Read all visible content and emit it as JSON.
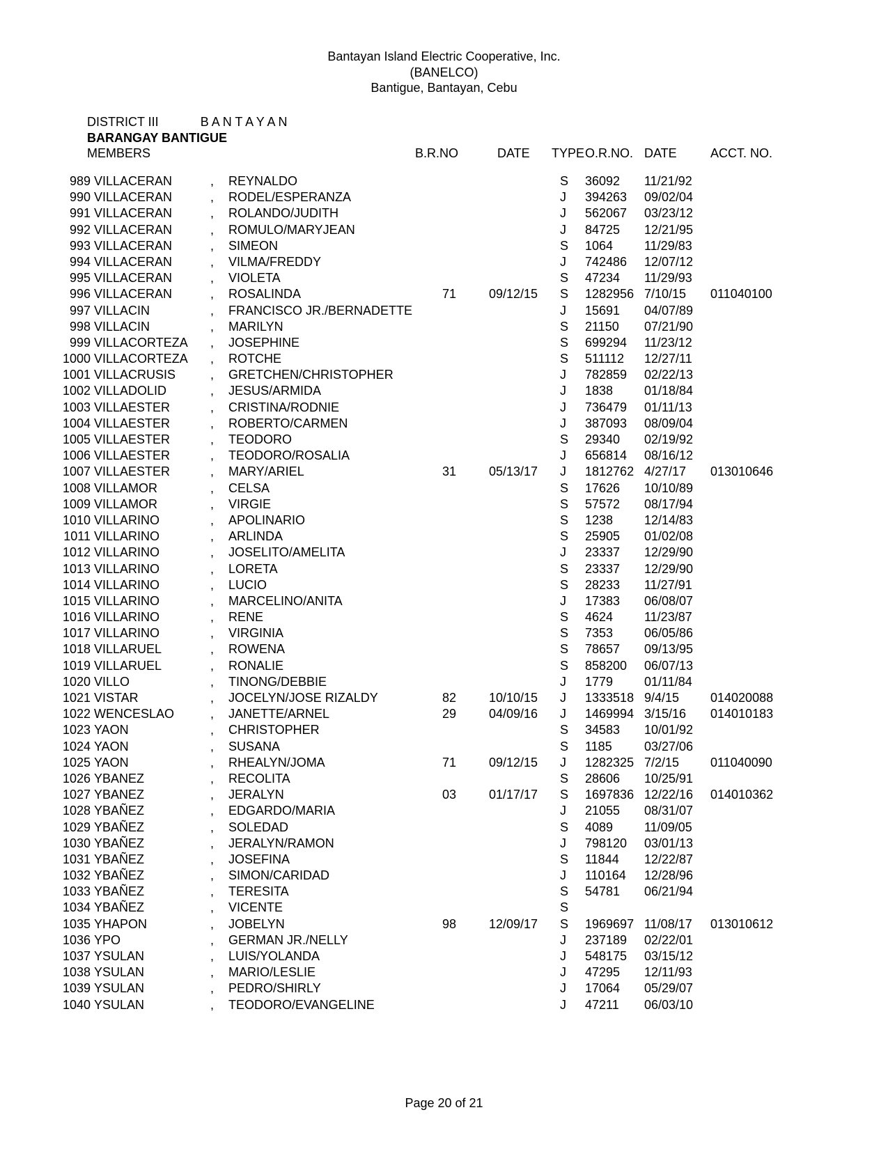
{
  "header": {
    "line1": "Bantayan Island Electric Cooperative, Inc.",
    "line2": "(BANELCO)",
    "line3": "Bantigue, Bantayan, Cebu"
  },
  "district_label": "DISTRICT III",
  "district_name": "B A N T A Y A N",
  "barangay_line": "BARANGAY  BANTIGUE",
  "members_label": "MEMBERS",
  "columns": {
    "brno": "B.R.NO",
    "date": "DATE",
    "type": "TYPE",
    "orno": "O.R.NO.",
    "date2": "DATE",
    "acct": "ACCT. NO."
  },
  "rows": [
    {
      "n": "989",
      "last": "VILLACERAN",
      "first": "REYNALDO",
      "brno": "",
      "d1": "",
      "t": "S",
      "or": "36092",
      "d2": "11/21/92",
      "acct": ""
    },
    {
      "n": "990",
      "last": "VILLACERAN",
      "first": "RODEL/ESPERANZA",
      "brno": "",
      "d1": "",
      "t": "J",
      "or": "394263",
      "d2": "09/02/04",
      "acct": ""
    },
    {
      "n": "991",
      "last": "VILLACERAN",
      "first": "ROLANDO/JUDITH",
      "brno": "",
      "d1": "",
      "t": "J",
      "or": "562067",
      "d2": "03/23/12",
      "acct": ""
    },
    {
      "n": "992",
      "last": "VILLACERAN",
      "first": "ROMULO/MARYJEAN",
      "brno": "",
      "d1": "",
      "t": "J",
      "or": "84725",
      "d2": "12/21/95",
      "acct": ""
    },
    {
      "n": "993",
      "last": "VILLACERAN",
      "first": "SIMEON",
      "brno": "",
      "d1": "",
      "t": "S",
      "or": "1064",
      "d2": "11/29/83",
      "acct": ""
    },
    {
      "n": "994",
      "last": "VILLACERAN",
      "first": "VILMA/FREDDY",
      "brno": "",
      "d1": "",
      "t": "J",
      "or": "742486",
      "d2": "12/07/12",
      "acct": ""
    },
    {
      "n": "995",
      "last": "VILLACERAN",
      "first": "VIOLETA",
      "brno": "",
      "d1": "",
      "t": "S",
      "or": "47234",
      "d2": "11/29/93",
      "acct": ""
    },
    {
      "n": "996",
      "last": "VILLACERAN",
      "first": "ROSALINDA",
      "brno": "71",
      "d1": "09/12/15",
      "t": "S",
      "or": "1282956",
      "d2": "7/10/15",
      "acct": "011040100"
    },
    {
      "n": "997",
      "last": "VILLACIN",
      "first": "FRANCISCO JR./BERNADETTE",
      "brno": "",
      "d1": "",
      "t": "J",
      "or": "15691",
      "d2": "04/07/89",
      "acct": ""
    },
    {
      "n": "998",
      "last": "VILLACIN",
      "first": "MARILYN",
      "brno": "",
      "d1": "",
      "t": "S",
      "or": "21150",
      "d2": "07/21/90",
      "acct": ""
    },
    {
      "n": "999",
      "last": "VILLACORTEZA",
      "first": "JOSEPHINE",
      "brno": "",
      "d1": "",
      "t": "S",
      "or": "699294",
      "d2": "11/23/12",
      "acct": ""
    },
    {
      "n": "1000",
      "last": "VILLACORTEZA",
      "first": "ROTCHE",
      "brno": "",
      "d1": "",
      "t": "S",
      "or": "511112",
      "d2": "12/27/11",
      "acct": ""
    },
    {
      "n": "1001",
      "last": "VILLACRUSIS",
      "first": "GRETCHEN/CHRISTOPHER",
      "brno": "",
      "d1": "",
      "t": "J",
      "or": "782859",
      "d2": "02/22/13",
      "acct": ""
    },
    {
      "n": "1002",
      "last": "VILLADOLID",
      "first": "JESUS/ARMIDA",
      "brno": "",
      "d1": "",
      "t": "J",
      "or": "1838",
      "d2": "01/18/84",
      "acct": ""
    },
    {
      "n": "1003",
      "last": "VILLAESTER",
      "first": "CRISTINA/RODNIE",
      "brno": "",
      "d1": "",
      "t": "J",
      "or": "736479",
      "d2": "01/11/13",
      "acct": ""
    },
    {
      "n": "1004",
      "last": "VILLAESTER",
      "first": "ROBERTO/CARMEN",
      "brno": "",
      "d1": "",
      "t": "J",
      "or": "387093",
      "d2": "08/09/04",
      "acct": ""
    },
    {
      "n": "1005",
      "last": "VILLAESTER",
      "first": "TEODORO",
      "brno": "",
      "d1": "",
      "t": "S",
      "or": "29340",
      "d2": "02/19/92",
      "acct": ""
    },
    {
      "n": "1006",
      "last": "VILLAESTER",
      "first": "TEODORO/ROSALIA",
      "brno": "",
      "d1": "",
      "t": "J",
      "or": "656814",
      "d2": "08/16/12",
      "acct": ""
    },
    {
      "n": "1007",
      "last": "VILLAESTER",
      "first": "MARY/ARIEL",
      "brno": "31",
      "d1": "05/13/17",
      "t": "J",
      "or": "1812762",
      "d2": "4/27/17",
      "acct": "013010646"
    },
    {
      "n": "1008",
      "last": "VILLAMOR",
      "first": "CELSA",
      "brno": "",
      "d1": "",
      "t": "S",
      "or": "17626",
      "d2": "10/10/89",
      "acct": ""
    },
    {
      "n": "1009",
      "last": "VILLAMOR",
      "first": "VIRGIE",
      "brno": "",
      "d1": "",
      "t": "S",
      "or": "57572",
      "d2": "08/17/94",
      "acct": ""
    },
    {
      "n": "1010",
      "last": "VILLARINO",
      "first": "APOLINARIO",
      "brno": "",
      "d1": "",
      "t": "S",
      "or": "1238",
      "d2": "12/14/83",
      "acct": ""
    },
    {
      "n": "1011",
      "last": "VILLARINO",
      "first": "ARLINDA",
      "brno": "",
      "d1": "",
      "t": "S",
      "or": "25905",
      "d2": "01/02/08",
      "acct": ""
    },
    {
      "n": "1012",
      "last": "VILLARINO",
      "first": "JOSELITO/AMELITA",
      "brno": "",
      "d1": "",
      "t": "J",
      "or": "23337",
      "d2": "12/29/90",
      "acct": ""
    },
    {
      "n": "1013",
      "last": "VILLARINO",
      "first": "LORETA",
      "brno": "",
      "d1": "",
      "t": "S",
      "or": "23337",
      "d2": "12/29/90",
      "acct": ""
    },
    {
      "n": "1014",
      "last": "VILLARINO",
      "first": "LUCIO",
      "brno": "",
      "d1": "",
      "t": "S",
      "or": "28233",
      "d2": "11/27/91",
      "acct": ""
    },
    {
      "n": "1015",
      "last": "VILLARINO",
      "first": "MARCELINO/ANITA",
      "brno": "",
      "d1": "",
      "t": "J",
      "or": "17383",
      "d2": "06/08/07",
      "acct": ""
    },
    {
      "n": "1016",
      "last": "VILLARINO",
      "first": "RENE",
      "brno": "",
      "d1": "",
      "t": "S",
      "or": "4624",
      "d2": "11/23/87",
      "acct": ""
    },
    {
      "n": "1017",
      "last": "VILLARINO",
      "first": "VIRGINIA",
      "brno": "",
      "d1": "",
      "t": "S",
      "or": "7353",
      "d2": "06/05/86",
      "acct": ""
    },
    {
      "n": "1018",
      "last": "VILLARUEL",
      "first": "ROWENA",
      "brno": "",
      "d1": "",
      "t": "S",
      "or": "78657",
      "d2": "09/13/95",
      "acct": ""
    },
    {
      "n": "1019",
      "last": "VILLARUEL",
      "first": "RONALIE",
      "brno": "",
      "d1": "",
      "t": "S",
      "or": "858200",
      "d2": "06/07/13",
      "acct": ""
    },
    {
      "n": "1020",
      "last": "VILLO",
      "first": "TINONG/DEBBIE",
      "brno": "",
      "d1": "",
      "t": "J",
      "or": "1779",
      "d2": "01/11/84",
      "acct": ""
    },
    {
      "n": "1021",
      "last": "VISTAR",
      "first": "JOCELYN/JOSE RIZALDY",
      "brno": "82",
      "d1": "10/10/15",
      "t": "J",
      "or": "1333518",
      "d2": "9/4/15",
      "acct": "014020088"
    },
    {
      "n": "1022",
      "last": "WENCESLAO",
      "first": "JANETTE/ARNEL",
      "brno": "29",
      "d1": "04/09/16",
      "t": "J",
      "or": "1469994",
      "d2": "3/15/16",
      "acct": "014010183"
    },
    {
      "n": "1023",
      "last": "YAON",
      "first": "CHRISTOPHER",
      "brno": "",
      "d1": "",
      "t": "S",
      "or": "34583",
      "d2": "10/01/92",
      "acct": ""
    },
    {
      "n": "1024",
      "last": "YAON",
      "first": "SUSANA",
      "brno": "",
      "d1": "",
      "t": "S",
      "or": "1185",
      "d2": "03/27/06",
      "acct": ""
    },
    {
      "n": "1025",
      "last": "YAON",
      "first": "RHEALYN/JOMA",
      "brno": "71",
      "d1": "09/12/15",
      "t": "J",
      "or": "1282325",
      "d2": "7/2/15",
      "acct": "011040090"
    },
    {
      "n": "1026",
      "last": "YBANEZ",
      "first": "RECOLITA",
      "brno": "",
      "d1": "",
      "t": "S",
      "or": "28606",
      "d2": "10/25/91",
      "acct": ""
    },
    {
      "n": "1027",
      "last": "YBANEZ",
      "first": "JERALYN",
      "brno": "03",
      "d1": "01/17/17",
      "t": "S",
      "or": "1697836",
      "d2": "12/22/16",
      "acct": "014010362"
    },
    {
      "n": "1028",
      "last": "YBAÑEZ",
      "first": "EDGARDO/MARIA",
      "brno": "",
      "d1": "",
      "t": "J",
      "or": "21055",
      "d2": "08/31/07",
      "acct": ""
    },
    {
      "n": "1029",
      "last": "YBAÑEZ",
      "first": "SOLEDAD",
      "brno": "",
      "d1": "",
      "t": "S",
      "or": "4089",
      "d2": "11/09/05",
      "acct": ""
    },
    {
      "n": "1030",
      "last": "YBAÑEZ",
      "first": "JERALYN/RAMON",
      "brno": "",
      "d1": "",
      "t": "J",
      "or": "798120",
      "d2": "03/01/13",
      "acct": ""
    },
    {
      "n": "1031",
      "last": "YBAÑEZ",
      "first": "JOSEFINA",
      "brno": "",
      "d1": "",
      "t": "S",
      "or": "11844",
      "d2": "12/22/87",
      "acct": ""
    },
    {
      "n": "1032",
      "last": "YBAÑEZ",
      "first": "SIMON/CARIDAD",
      "brno": "",
      "d1": "",
      "t": "J",
      "or": "110164",
      "d2": "12/28/96",
      "acct": ""
    },
    {
      "n": "1033",
      "last": "YBAÑEZ",
      "first": "TERESITA",
      "brno": "",
      "d1": "",
      "t": "S",
      "or": "54781",
      "d2": "06/21/94",
      "acct": ""
    },
    {
      "n": "1034",
      "last": "YBAÑEZ",
      "first": "VICENTE",
      "brno": "",
      "d1": "",
      "t": "S",
      "or": "",
      "d2": "",
      "acct": ""
    },
    {
      "n": "1035",
      "last": "YHAPON",
      "first": "JOBELYN",
      "brno": "98",
      "d1": "12/09/17",
      "t": "S",
      "or": "1969697",
      "d2": "11/08/17",
      "acct": "013010612"
    },
    {
      "n": "1036",
      "last": "YPO",
      "first": "GERMAN JR./NELLY",
      "brno": "",
      "d1": "",
      "t": "J",
      "or": "237189",
      "d2": "02/22/01",
      "acct": ""
    },
    {
      "n": "1037",
      "last": "YSULAN",
      "first": "LUIS/YOLANDA",
      "brno": "",
      "d1": "",
      "t": "J",
      "or": "548175",
      "d2": "03/15/12",
      "acct": ""
    },
    {
      "n": "1038",
      "last": "YSULAN",
      "first": "MARIO/LESLIE",
      "brno": "",
      "d1": "",
      "t": "J",
      "or": "47295",
      "d2": "12/11/93",
      "acct": ""
    },
    {
      "n": "1039",
      "last": "YSULAN",
      "first": "PEDRO/SHIRLY",
      "brno": "",
      "d1": "",
      "t": "J",
      "or": "17064",
      "d2": "05/29/07",
      "acct": ""
    },
    {
      "n": "1040",
      "last": "YSULAN",
      "first": "TEODORO/EVANGELINE",
      "brno": "",
      "d1": "",
      "t": "J",
      "or": "47211",
      "d2": "06/03/10",
      "acct": ""
    }
  ],
  "footer": "Page 20 of 21"
}
